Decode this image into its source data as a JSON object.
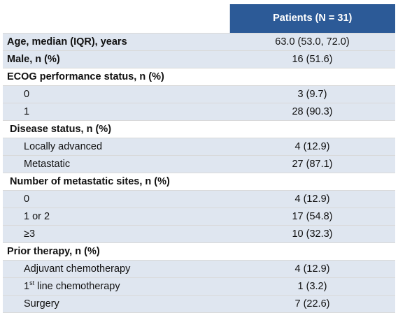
{
  "table": {
    "header": "Patients (N = 31)",
    "rows": [
      {
        "label": "Age, median (IQR), years",
        "value": "63.0 (53.0, 72.0)"
      },
      {
        "label": "Male, n (%)",
        "value": "16 (51.6)"
      },
      {
        "label": "ECOG performance status, n (%)",
        "value": ""
      },
      {
        "label": "0",
        "value": "3 (9.7)"
      },
      {
        "label": "1",
        "value": "28 (90.3)"
      },
      {
        "label": "Disease status, n (%)",
        "value": ""
      },
      {
        "label": "Locally advanced",
        "value": "4 (12.9)"
      },
      {
        "label": "Metastatic",
        "value": "27 (87.1)"
      },
      {
        "label": "Number of metastatic sites, n (%)",
        "value": ""
      },
      {
        "label": "0",
        "value": "4 (12.9)"
      },
      {
        "label": "1 or 2",
        "value": "17 (54.8)"
      },
      {
        "label": "≥3",
        "value": "10 (32.3)"
      },
      {
        "label": "Prior therapy, n (%)",
        "value": ""
      },
      {
        "label": "Adjuvant chemotherapy",
        "value": "4 (12.9)"
      },
      {
        "label": "1",
        "label_sup": "st",
        "label_rest": " line chemotherapy",
        "value": "1 (3.2)"
      },
      {
        "label": "Surgery",
        "value": "7 (22.6)"
      }
    ]
  }
}
